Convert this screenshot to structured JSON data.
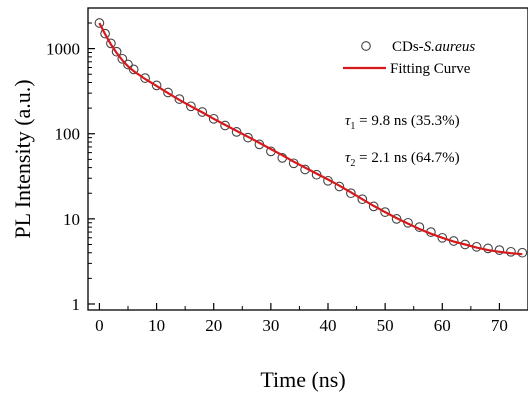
{
  "chart_data": {
    "type": "scatter",
    "title": "",
    "xlabel": "Time (ns)",
    "ylabel": "PL Intensity (a.u.)",
    "xlim": [
      -2,
      75
    ],
    "ylim": [
      0.85,
      3000
    ],
    "yscale": "log",
    "x_ticks": [
      0,
      10,
      20,
      30,
      40,
      50,
      60,
      70
    ],
    "x_tick_labels": [
      "0",
      "10",
      "20",
      "30",
      "40",
      "50",
      "60",
      "70"
    ],
    "y_ticks": [
      1,
      10,
      100,
      1000
    ],
    "y_tick_labels": [
      "1",
      "10",
      "100",
      "1000"
    ],
    "grid": false,
    "legend_position": "top-right",
    "series": [
      {
        "name": "CDs-S.aureus",
        "name_prefix": "CDs-",
        "name_italic": "S.aureus",
        "kind": "scatter",
        "marker": "open-circle",
        "color": "#444444",
        "x": [
          0,
          1,
          2,
          3,
          4,
          5,
          6,
          8,
          10,
          12,
          14,
          16,
          18,
          20,
          22,
          24,
          26,
          28,
          30,
          32,
          34,
          36,
          38,
          40,
          42,
          44,
          46,
          48,
          50,
          52,
          54,
          56,
          58,
          60,
          62,
          64,
          66,
          68,
          70,
          72,
          74
        ],
        "y": [
          2000,
          1500,
          1150,
          920,
          760,
          650,
          570,
          450,
          370,
          305,
          255,
          210,
          180,
          150,
          125,
          105,
          90,
          75,
          62,
          52,
          45,
          38,
          33,
          28,
          24,
          20,
          17,
          14,
          12,
          10,
          9,
          8,
          7,
          6,
          5.5,
          5,
          4.7,
          4.5,
          4.3,
          4.1,
          4
        ]
      },
      {
        "name": "Fitting Curve",
        "kind": "line",
        "color": "#d7191c",
        "x": [
          0,
          1,
          2,
          3,
          4,
          5,
          6,
          8,
          10,
          12,
          14,
          16,
          18,
          20,
          22,
          24,
          26,
          28,
          30,
          32,
          34,
          36,
          38,
          40,
          42,
          44,
          46,
          48,
          50,
          52,
          54,
          56,
          58,
          60,
          62,
          64,
          66,
          68,
          70,
          72,
          74
        ],
        "y": [
          2000,
          1480,
          1120,
          890,
          730,
          620,
          545,
          440,
          365,
          300,
          250,
          210,
          178,
          150,
          127,
          108,
          92,
          78,
          66,
          56,
          47,
          40,
          34,
          29,
          24.5,
          20.5,
          17,
          14.2,
          12,
          10.2,
          8.8,
          7.6,
          6.7,
          6,
          5.4,
          5,
          4.6,
          4.3,
          4.1,
          3.95,
          3.85
        ]
      }
    ],
    "annotations": [
      {
        "symbol": "τ",
        "subscript": "1",
        "text": " = 9.8 ns (35.3%)"
      },
      {
        "symbol": "τ",
        "subscript": "2",
        "text": " = 2.1 ns (64.7%)"
      }
    ]
  }
}
